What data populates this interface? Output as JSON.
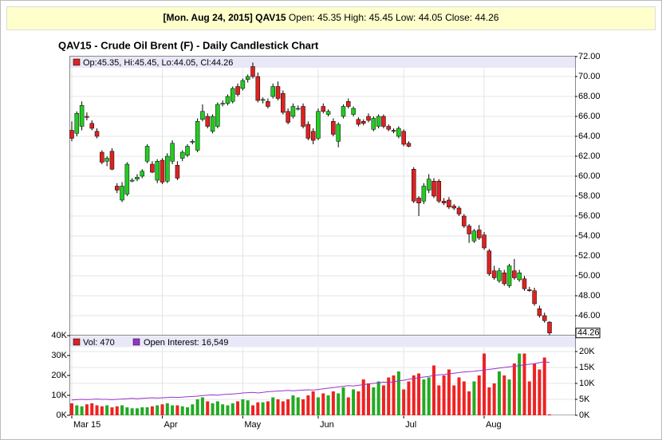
{
  "header": {
    "symbol_date": "[Mon. Aug 24, 2015] QAV15",
    "quote": "Open: 45.35 High: 45.45 Low: 44.05 Close: 44.26"
  },
  "chart_data": [
    {
      "type": "candlestick",
      "title": "QAV15 - Crude Oil Brent (F) - Daily Candlestick Chart",
      "legend": "Op:45.35, Hi:45.45, Lo:44.05, Cl:44.26",
      "up_color": "#22cc22",
      "down_color": "#dd2222",
      "grid": true,
      "categories": [
        "Mar 15",
        null,
        null,
        null,
        null,
        null,
        null,
        null,
        null,
        null,
        null,
        null,
        null,
        null,
        null,
        null,
        null,
        null,
        "Apr",
        null,
        null,
        null,
        null,
        null,
        null,
        null,
        null,
        null,
        null,
        null,
        null,
        null,
        null,
        null,
        "May",
        null,
        null,
        null,
        null,
        null,
        null,
        null,
        null,
        null,
        null,
        null,
        null,
        null,
        null,
        "Jun",
        null,
        null,
        null,
        null,
        null,
        null,
        null,
        null,
        null,
        null,
        null,
        null,
        null,
        null,
        null,
        null,
        "Jul",
        null,
        null,
        null,
        null,
        null,
        null,
        null,
        null,
        null,
        null,
        null,
        null,
        null,
        null,
        null,
        "Aug",
        null,
        null,
        null,
        null,
        null,
        null,
        null,
        null,
        null,
        null,
        null,
        null,
        null
      ],
      "open": [
        64.6,
        64.3,
        65.0,
        66.0,
        65.3,
        64.5,
        62.4,
        61.5,
        62.5,
        59.0,
        57.6,
        58.2,
        59.5,
        59.7,
        60.0,
        61.5,
        61.2,
        59.6,
        61.6,
        59.5,
        61.5,
        61.1,
        61.8,
        62.1,
        63.4,
        62.6,
        65.7,
        66.0,
        64.5,
        65.0,
        67.3,
        67.3,
        67.5,
        69.0,
        68.8,
        69.7,
        71.0,
        70.0,
        67.6,
        67.5,
        68.0,
        69.0,
        68.3,
        66.5,
        66.0,
        66.8,
        67.0,
        65.2,
        64.5,
        63.8,
        67.0,
        66.2,
        65.5,
        63.5,
        66.0,
        67.5,
        66.2,
        65.7,
        65.5,
        66.0,
        64.7,
        65.0,
        66.0,
        65.0,
        64.6,
        64.0,
        64.5,
        63.3,
        60.7,
        57.8,
        57.5,
        58.6,
        59.5,
        59.5,
        57.5,
        57.6,
        57.0,
        56.8,
        56.0,
        55.0,
        53.5,
        54.6,
        54.1,
        52.5,
        50.5,
        49.5,
        50.3,
        49.0,
        50.5,
        49.6,
        49.7,
        48.6,
        48.5,
        46.7,
        46.0,
        45.35
      ],
      "high": [
        65.5,
        66.5,
        67.5,
        66.4,
        65.6,
        64.8,
        62.6,
        62.0,
        62.8,
        59.3,
        59.4,
        61.4,
        59.8,
        60.2,
        60.7,
        63.2,
        61.5,
        61.7,
        61.8,
        62.3,
        63.6,
        61.5,
        62.6,
        63.2,
        63.7,
        65.8,
        67.2,
        66.3,
        66.2,
        67.4,
        67.6,
        68.2,
        69.0,
        69.3,
        69.8,
        70.2,
        71.4,
        70.4,
        67.9,
        67.8,
        69.3,
        69.5,
        68.6,
        66.8,
        67.3,
        67.1,
        67.3,
        65.5,
        64.8,
        66.8,
        67.3,
        66.7,
        65.8,
        65.4,
        67.2,
        67.8,
        67.0,
        65.9,
        65.7,
        66.3,
        66.0,
        66.2,
        66.2,
        65.2,
        64.8,
        65.0,
        64.7,
        63.5,
        60.9,
        58.0,
        59.3,
        60.2,
        59.8,
        59.7,
        57.8,
        57.9,
        57.2,
        57.0,
        56.2,
        55.2,
        54.7,
        55.1,
        54.4,
        52.7,
        51.0,
        50.8,
        50.6,
        51.2,
        51.7,
        50.6,
        50.0,
        48.9,
        48.8,
        47.0,
        46.3,
        45.45
      ],
      "low": [
        63.5,
        64.0,
        64.6,
        65.6,
        64.6,
        63.8,
        61.2,
        61.0,
        60.6,
        58.3,
        57.4,
        58.0,
        59.4,
        59.5,
        59.8,
        61.3,
        60.3,
        59.3,
        59.2,
        59.3,
        61.2,
        59.6,
        61.5,
        61.9,
        63.2,
        62.4,
        65.5,
        64.8,
        64.3,
        64.8,
        67.0,
        67.1,
        67.3,
        68.0,
        68.6,
        69.4,
        69.8,
        67.4,
        67.3,
        66.8,
        67.8,
        67.6,
        66.2,
        65.2,
        65.8,
        66.6,
        64.8,
        63.6,
        63.2,
        63.6,
        66.3,
        66.0,
        64.0,
        62.9,
        65.8,
        66.8,
        66.0,
        65.0,
        65.1,
        65.4,
        64.5,
        64.8,
        64.8,
        64.5,
        64.3,
        63.8,
        63.0,
        62.9,
        57.3,
        56.0,
        57.2,
        58.3,
        57.8,
        57.3,
        57.1,
        56.7,
        56.6,
        56.0,
        54.8,
        53.3,
        53.3,
        53.6,
        52.6,
        50.0,
        49.6,
        49.3,
        49.0,
        48.8,
        49.6,
        49.4,
        48.5,
        48.4,
        47.0,
        45.8,
        45.3,
        44.05
      ],
      "close": [
        63.8,
        66.3,
        67.1,
        65.9,
        64.8,
        64.0,
        61.4,
        61.8,
        60.7,
        58.6,
        59.0,
        61.2,
        59.6,
        59.9,
        60.5,
        63.0,
        60.4,
        61.5,
        59.4,
        62.0,
        63.3,
        59.8,
        62.4,
        63.0,
        63.5,
        65.5,
        66.5,
        65.0,
        66.0,
        67.2,
        67.3,
        68.0,
        68.8,
        68.2,
        69.6,
        70.0,
        70.0,
        67.6,
        67.7,
        67.0,
        69.0,
        67.8,
        66.4,
        65.4,
        67.0,
        66.8,
        65.0,
        63.8,
        63.6,
        66.5,
        66.5,
        66.5,
        64.2,
        65.2,
        67.0,
        67.0,
        66.8,
        65.2,
        65.3,
        65.6,
        65.8,
        66.0,
        65.0,
        64.7,
        64.5,
        64.8,
        63.2,
        63.0,
        57.5,
        57.3,
        59.0,
        59.7,
        58.0,
        57.5,
        57.3,
        56.9,
        56.8,
        56.2,
        55.0,
        54.2,
        54.5,
        53.8,
        52.8,
        50.2,
        49.8,
        50.5,
        49.2,
        51.0,
        49.8,
        50.3,
        48.7,
        48.5,
        47.2,
        46.0,
        45.5,
        44.26
      ],
      "ylim": [
        44,
        72
      ],
      "yticks": [
        {
          "value": 46,
          "label": "46.00"
        },
        {
          "value": 48,
          "label": "48.00"
        },
        {
          "value": 50,
          "label": "50.00"
        },
        {
          "value": 52,
          "label": "52.00"
        },
        {
          "value": 54,
          "label": "54.00"
        },
        {
          "value": 56,
          "label": "56.00"
        },
        {
          "value": 58,
          "label": "58.00"
        },
        {
          "value": 60,
          "label": "60.00"
        },
        {
          "value": 62,
          "label": "62.00"
        },
        {
          "value": 64,
          "label": "64.00"
        },
        {
          "value": 66,
          "label": "66.00"
        },
        {
          "value": 68,
          "label": "68.00"
        },
        {
          "value": 70,
          "label": "70.00"
        },
        {
          "value": 72,
          "label": "72.00"
        }
      ],
      "last_price": 44.26
    },
    {
      "type": "bar",
      "up_color": "#22aa22",
      "down_color": "#ee2222",
      "series": [
        {
          "name": "Vol: 470",
          "color": "#dd2222",
          "values": [
            6000,
            5000,
            4500,
            5500,
            6000,
            5000,
            4500,
            5000,
            4000,
            4500,
            5000,
            4000,
            3500,
            3500,
            4000,
            4000,
            4500,
            5000,
            5500,
            6000,
            5000,
            5000,
            4500,
            4000,
            5500,
            8000,
            9000,
            7000,
            6000,
            7000,
            5500,
            5000,
            6000,
            7000,
            8000,
            7500,
            5000,
            6500,
            6500,
            7000,
            9000,
            8000,
            7000,
            8000,
            10000,
            9000,
            8000,
            10000,
            12000,
            9000,
            11000,
            10000,
            12000,
            11000,
            14000,
            9000,
            13000,
            12000,
            18000,
            16000,
            14000,
            17000,
            15000,
            19000,
            20000,
            22000,
            13000,
            17000,
            20000,
            21000,
            18000,
            19000,
            25000,
            15000,
            20000,
            23000,
            15000,
            19000,
            17000,
            12000,
            17000,
            20000,
            31000,
            14000,
            16000,
            22000,
            20000,
            18000,
            26000,
            31000,
            31000,
            17000,
            26000,
            23000,
            29000,
            470
          ]
        },
        {
          "name": "Open Interest: 16,549",
          "color": "#9933cc",
          "axis": "y2",
          "values": [
            4800,
            4900,
            5000,
            4900,
            5000,
            5100,
            5000,
            5000,
            4900,
            5000,
            5100,
            5200,
            5300,
            5200,
            5300,
            5400,
            5500,
            5400,
            5500,
            5600,
            5700,
            5600,
            5700,
            5800,
            5900,
            6000,
            6200,
            6300,
            6400,
            6300,
            6500,
            6600,
            6700,
            6800,
            7000,
            7100,
            7200,
            7000,
            7200,
            7400,
            7500,
            7600,
            7700,
            7800,
            7700,
            7800,
            7900,
            8000,
            7900,
            8100,
            8300,
            8500,
            8700,
            8900,
            9100,
            9300,
            9200,
            9400,
            9600,
            9800,
            10000,
            10200,
            10400,
            10300,
            10500,
            10800,
            11000,
            11300,
            11500,
            11800,
            12000,
            12200,
            12500,
            12700,
            12800,
            13000,
            13200,
            13400,
            13600,
            13700,
            13800,
            14000,
            14200,
            14400,
            14600,
            14800,
            15000,
            15200,
            15400,
            15600,
            15800,
            16000,
            16200,
            16500,
            16800,
            16549
          ]
        }
      ],
      "ylim": [
        0,
        40000
      ],
      "yticks": [
        {
          "value": 0,
          "label": "0K"
        },
        {
          "value": 10000,
          "label": "10K"
        },
        {
          "value": 20000,
          "label": "20K"
        },
        {
          "value": 30000,
          "label": "30K"
        },
        {
          "value": 40000,
          "label": "40K"
        }
      ],
      "y2lim": [
        0,
        25000
      ],
      "y2ticks": [
        {
          "value": 0,
          "label": "0K"
        },
        {
          "value": 5000,
          "label": "5K"
        },
        {
          "value": 10000,
          "label": "10K"
        },
        {
          "value": 15000,
          "label": "15K"
        },
        {
          "value": 20000,
          "label": "20K"
        }
      ]
    }
  ]
}
